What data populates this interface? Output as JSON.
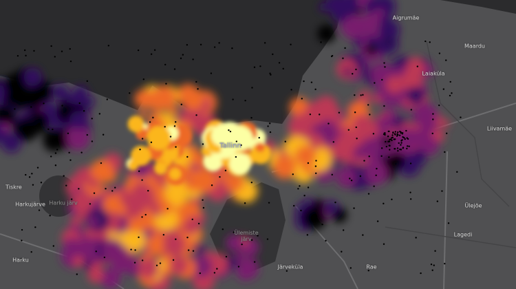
{
  "map": {
    "type": "heatmap",
    "colormap": [
      "#000004",
      "#320a5e",
      "#781c6d",
      "#bc3754",
      "#ed6925",
      "#fbb61a",
      "#fcffa4"
    ],
    "colors": {
      "sea": "#2b2b2d",
      "land": "#505052",
      "lake": "#333335",
      "road": "#6a6a6c"
    },
    "labels": {
      "tallinn": "Tallinn",
      "aigrumae": "Aigrumäe",
      "maardu": "Maardu",
      "laiakula": "Laiaküla",
      "liivamae": "Liivamäe",
      "ulejoe": "Ülejõe",
      "lagedi": "Lagedi",
      "rae": "Rae",
      "jarvekula": "Järveküla",
      "tiskre": "Tiskre",
      "harkujarve": "Harkujärve",
      "harku_jarv": "Harku järv",
      "harku": "Harku",
      "ulemiste_jarv_1": "Ülemiste",
      "ulemiste_jarv_2": "järv"
    }
  }
}
